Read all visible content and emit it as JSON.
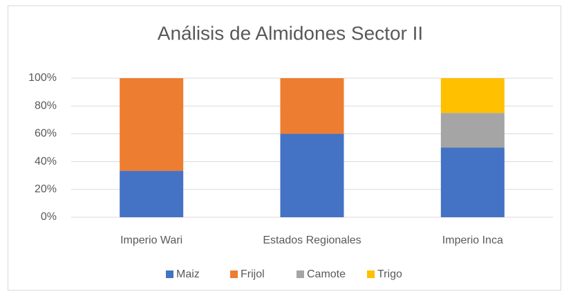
{
  "chart_data": {
    "type": "stacked_bar_percent",
    "title": "Análisis de Almidones Sector II",
    "categories": [
      "Imperio Wari",
      "Estados Regionales",
      "Imperio Inca"
    ],
    "series": [
      {
        "name": "Maiz",
        "color": "#4472c4",
        "values": [
          33.3,
          60,
          50
        ]
      },
      {
        "name": "Frijol",
        "color": "#ed7d31",
        "values": [
          66.7,
          40,
          0
        ]
      },
      {
        "name": "Camote",
        "color": "#a5a5a5",
        "values": [
          0,
          0,
          25
        ]
      },
      {
        "name": "Trigo",
        "color": "#ffc000",
        "values": [
          0,
          0,
          25
        ]
      }
    ],
    "ylim": [
      0,
      100
    ],
    "yticks": [
      {
        "value": 0,
        "label": "0%"
      },
      {
        "value": 20,
        "label": "20%"
      },
      {
        "value": 40,
        "label": "40%"
      },
      {
        "value": 60,
        "label": "60%"
      },
      {
        "value": 80,
        "label": "80%"
      },
      {
        "value": 100,
        "label": "100%"
      }
    ],
    "grid": true,
    "legend": "bottom"
  }
}
